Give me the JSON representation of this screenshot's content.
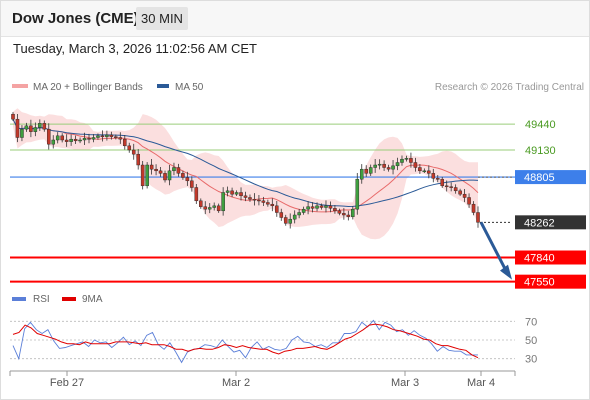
{
  "header": {
    "instrument": "Dow Jones (CME)",
    "timeframe": "30 MIN"
  },
  "datetime": "Tuesday, March 3, 2026 11:02:56 AM CET",
  "copyright": "Research © 2026 Trading Central",
  "colors": {
    "bollinger": "#f4a3a3",
    "ma20": "#e86a6a",
    "ma50": "#2b5a97",
    "rsi": "#5b7fd8",
    "rsi_ma": "#e00000",
    "support": "#ff0000",
    "resistance": "#9acd7a",
    "pivot": "#3d7fea",
    "last": "#333333",
    "arrow": "#2b5a97"
  },
  "chart_data": [
    {
      "type": "candlestick",
      "legend": [
        {
          "name": "MA 20 + Bollinger Bands",
          "color": "#f4a3a3"
        },
        {
          "name": "MA 50",
          "color": "#2b5a97"
        }
      ],
      "x_ticks": [
        "Feb 27",
        "Mar 2",
        "Mar 3",
        "Mar 4"
      ],
      "ylim": [
        47450,
        49730
      ],
      "levels": [
        {
          "label": "49440",
          "value": 49440,
          "kind": "resistance"
        },
        {
          "label": "49130",
          "value": 49130,
          "kind": "resistance"
        },
        {
          "label": "48805",
          "value": 48805,
          "kind": "pivot"
        },
        {
          "label": "48262",
          "value": 48262,
          "kind": "last"
        },
        {
          "label": "47840",
          "value": 47840,
          "kind": "support"
        },
        {
          "label": "47550",
          "value": 47550,
          "kind": "support"
        }
      ],
      "projection": {
        "from": 48262,
        "to": 47550
      },
      "closes": [
        49500,
        49280,
        49380,
        49420,
        49350,
        49400,
        49450,
        49380,
        49200,
        49250,
        49300,
        49250,
        49230,
        49260,
        49240,
        49250,
        49270,
        49260,
        49280,
        49300,
        49290,
        49310,
        49290,
        49280,
        49260,
        49180,
        49130,
        49080,
        48950,
        48700,
        48950,
        48900,
        48880,
        48850,
        48770,
        48880,
        48920,
        48850,
        48800,
        48760,
        48680,
        48520,
        48450,
        48420,
        48440,
        48460,
        48400,
        48620,
        48640,
        48600,
        48620,
        48580,
        48560,
        48540,
        48530,
        48520,
        48500,
        48480,
        48460,
        48380,
        48320,
        48250,
        48300,
        48350,
        48380,
        48420,
        48450,
        48430,
        48460,
        48440,
        48460,
        48430,
        48400,
        48370,
        48350,
        48330,
        48420,
        48780,
        48900,
        48850,
        48920,
        48950,
        48960,
        48920,
        48900,
        48940,
        48980,
        49020,
        49030,
        48980,
        48920,
        48880,
        48880,
        48850,
        48790,
        48780,
        48700,
        48690,
        48680,
        48640,
        48600,
        48560,
        48480,
        48380,
        48262
      ]
    },
    {
      "type": "line",
      "legend": [
        {
          "name": "RSI",
          "color": "#5b7fd8"
        },
        {
          "name": "9MA",
          "color": "#e00000"
        }
      ],
      "y_ticks": [
        "70",
        "50",
        "30"
      ],
      "ylim": [
        20,
        80
      ],
      "series": [
        {
          "name": "RSI",
          "values": [
            44,
            30,
            62,
            69,
            61,
            57,
            61,
            49,
            41,
            42,
            44,
            46,
            48,
            43,
            50,
            47,
            48,
            42,
            47,
            53,
            45,
            49,
            44,
            55,
            58,
            45,
            40,
            47,
            37,
            26,
            37,
            40,
            41,
            45,
            44,
            42,
            50,
            43,
            37,
            39,
            31,
            42,
            48,
            40,
            43,
            40,
            39,
            41,
            50,
            54,
            48,
            47,
            43,
            45,
            42,
            47,
            47,
            57,
            57,
            59,
            69,
            64,
            71,
            61,
            69,
            66,
            59,
            61,
            55,
            60,
            55,
            52,
            46,
            38,
            43,
            39,
            38,
            38,
            34,
            34,
            34
          ]
        },
        {
          "name": "9MA",
          "values": [
            56,
            58,
            66,
            63,
            57,
            55,
            53,
            51,
            48,
            46,
            46,
            45,
            48,
            46,
            46,
            46,
            46,
            48,
            48,
            48,
            47,
            46,
            47,
            45,
            45,
            45,
            43,
            40,
            40,
            38,
            40,
            41,
            40,
            40,
            42,
            45,
            44,
            42,
            44,
            42,
            41,
            40,
            40,
            37,
            35,
            38,
            39,
            41,
            41,
            42,
            43,
            41,
            40,
            43,
            47,
            51,
            53,
            57,
            61,
            66,
            67,
            66,
            64,
            61,
            60,
            58,
            56,
            54,
            51,
            50,
            46,
            44,
            44,
            42,
            40,
            39,
            34,
            31
          ]
        }
      ]
    }
  ]
}
